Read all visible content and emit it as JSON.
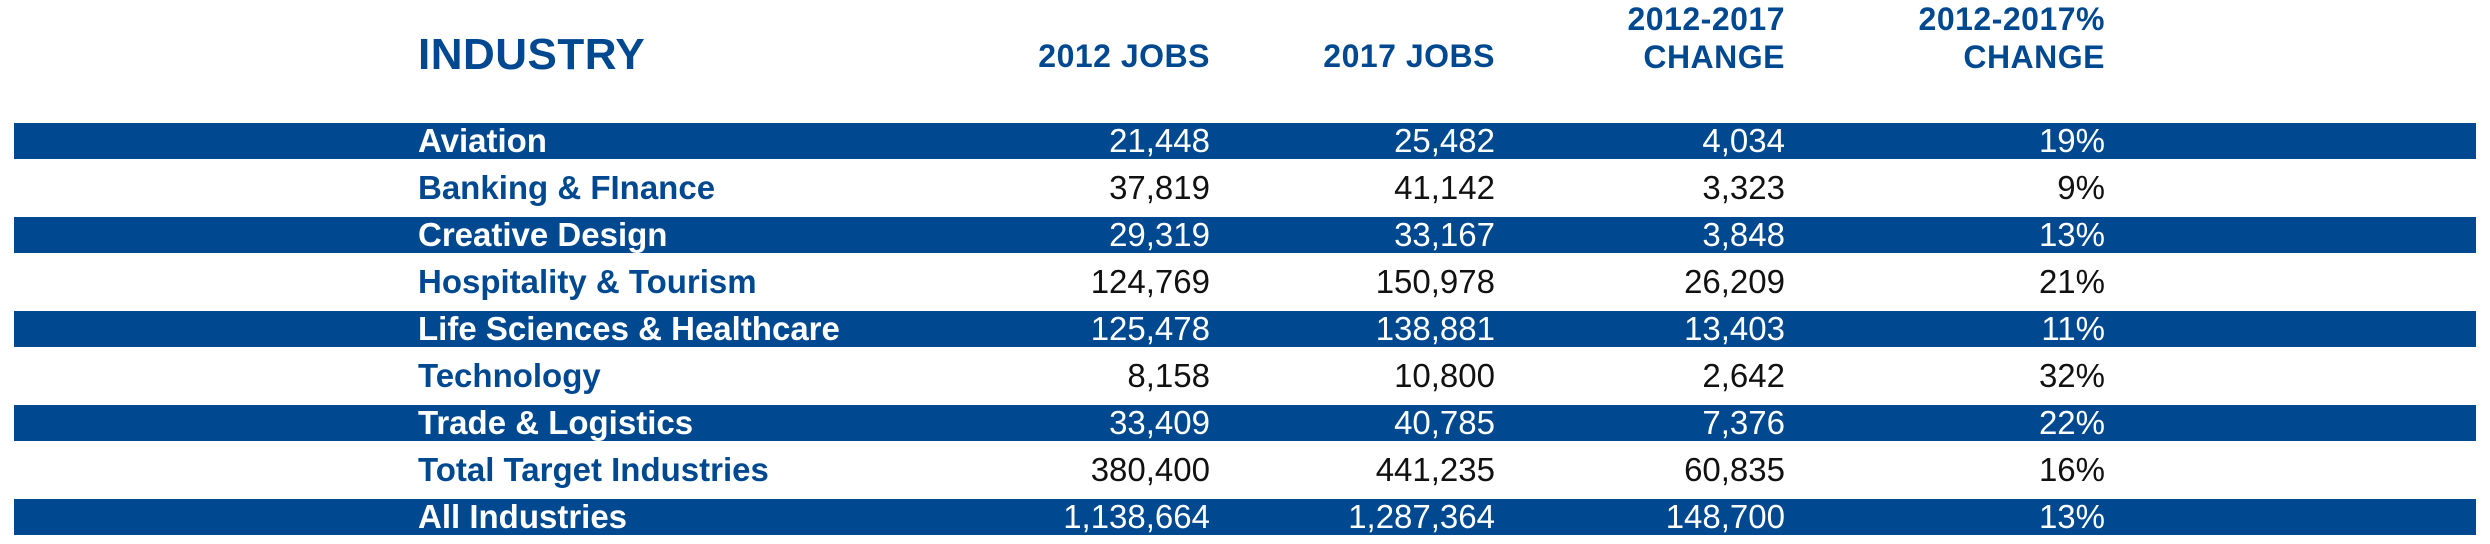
{
  "header": {
    "industry": "INDUSTRY",
    "jobs_2012": "2012 JOBS",
    "jobs_2017": "2017 JOBS",
    "change_line1": "2012-2017",
    "change_line2": "CHANGE",
    "pct_line1": "2012-2017%",
    "pct_line2": "CHANGE"
  },
  "rows": [
    {
      "industry": "Aviation",
      "jobs_2012": "21,448",
      "jobs_2017": "25,482",
      "change": "4,034",
      "pct": "19%"
    },
    {
      "industry": "Banking & FInance",
      "jobs_2012": "37,819",
      "jobs_2017": "41,142",
      "change": "3,323",
      "pct": "9%"
    },
    {
      "industry": "Creative Design",
      "jobs_2012": "29,319",
      "jobs_2017": "33,167",
      "change": "3,848",
      "pct": "13%"
    },
    {
      "industry": "Hospitality & Tourism",
      "jobs_2012": "124,769",
      "jobs_2017": "150,978",
      "change": "26,209",
      "pct": "21%"
    },
    {
      "industry": "Life Sciences & Healthcare",
      "jobs_2012": "125,478",
      "jobs_2017": "138,881",
      "change": "13,403",
      "pct": "11%"
    },
    {
      "industry": "Technology",
      "jobs_2012": "8,158",
      "jobs_2017": "10,800",
      "change": "2,642",
      "pct": "32%"
    },
    {
      "industry": "Trade & Logistics",
      "jobs_2012": "33,409",
      "jobs_2017": "40,785",
      "change": "7,376",
      "pct": "22%"
    },
    {
      "industry": "Total Target Industries",
      "jobs_2012": "380,400",
      "jobs_2017": "441,235",
      "change": "60,835",
      "pct": "16%"
    },
    {
      "industry": "All Industries",
      "jobs_2012": "1,138,664",
      "jobs_2017": "1,287,364",
      "change": "148,700",
      "pct": "13%"
    }
  ],
  "colors": {
    "accent": "#004990",
    "band_text": "#ffffff",
    "body_text": "#111111"
  }
}
